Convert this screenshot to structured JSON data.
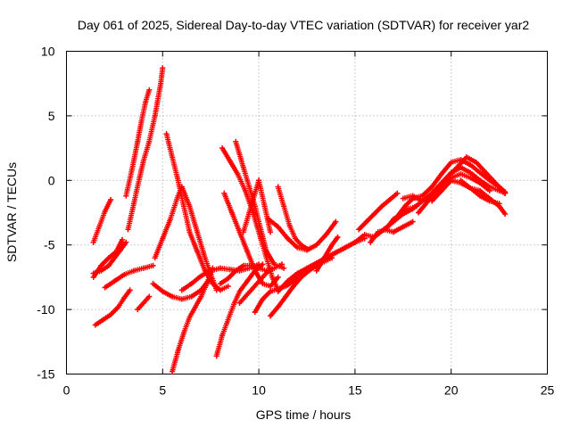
{
  "chart_data": {
    "type": "scatter",
    "title": "Day 061 of 2025, Sidereal Day-to-day VTEC variation (SDTVAR) for receiver yar2",
    "xlabel": "GPS time / hours",
    "ylabel": "SDTVAR / TECUs",
    "xlim": [
      0,
      25
    ],
    "ylim": [
      -15,
      10
    ],
    "xticks": [
      "0",
      "5",
      "10",
      "15",
      "20",
      "25"
    ],
    "yticks": [
      "-15",
      "-10",
      "-5",
      "0",
      "5",
      "10"
    ],
    "grid": true,
    "marker": "+",
    "color": "#ff0000",
    "series": [
      {
        "name": "trace-1",
        "x": [
          1.4,
          1.7,
          2.0,
          2.3
        ],
        "y": [
          -4.8,
          -3.6,
          -2.4,
          -1.5
        ]
      },
      {
        "name": "trace-2",
        "x": [
          1.4,
          1.8,
          2.2,
          2.6,
          2.9
        ],
        "y": [
          -7.5,
          -6.6,
          -6.0,
          -5.5,
          -4.6
        ]
      },
      {
        "name": "trace-3",
        "x": [
          1.4,
          1.8,
          2.2,
          2.5,
          2.8,
          3.1
        ],
        "y": [
          -7.2,
          -7.0,
          -6.6,
          -6.0,
          -5.4,
          -4.8
        ]
      },
      {
        "name": "trace-4",
        "x": [
          1.5,
          1.9,
          2.3,
          2.7,
          3.0,
          3.3
        ],
        "y": [
          -11.2,
          -10.8,
          -10.4,
          -9.8,
          -9.1,
          -8.5
        ]
      },
      {
        "name": "trace-5",
        "x": [
          2.0,
          2.5,
          3.0,
          3.5,
          4.0,
          4.5
        ],
        "y": [
          -8.3,
          -7.8,
          -7.3,
          -7.0,
          -6.8,
          -6.6
        ]
      },
      {
        "name": "trace-6",
        "x": [
          3.1,
          3.4,
          3.7,
          3.9,
          4.1,
          4.3
        ],
        "y": [
          -1.2,
          0.8,
          3.0,
          4.6,
          6.0,
          7.0
        ]
      },
      {
        "name": "trace-7",
        "x": [
          3.2,
          3.5,
          3.8,
          4.0,
          4.3,
          4.6,
          4.9,
          5.0
        ],
        "y": [
          -3.8,
          -1.8,
          0.2,
          1.5,
          3.0,
          5.0,
          7.5,
          8.7
        ]
      },
      {
        "name": "trace-8",
        "x": [
          3.7,
          4.0,
          4.3
        ],
        "y": [
          -10.0,
          -9.5,
          -9.0
        ]
      },
      {
        "name": "trace-9",
        "x": [
          4.5,
          5.0,
          5.5,
          6.0,
          6.5,
          7.0,
          7.5
        ],
        "y": [
          -8.0,
          -8.6,
          -9.0,
          -9.2,
          -9.0,
          -8.5,
          -7.5
        ]
      },
      {
        "name": "trace-10",
        "x": [
          4.6,
          5.0,
          5.4,
          5.8,
          6.0,
          6.4,
          6.8,
          7.2,
          7.8
        ],
        "y": [
          -6.0,
          -4.5,
          -3.0,
          -1.2,
          -0.5,
          -2.0,
          -4.0,
          -6.0,
          -8.5
        ]
      },
      {
        "name": "trace-11",
        "x": [
          5.2,
          5.5,
          5.8,
          6.1,
          6.4,
          6.8,
          7.2,
          7.6,
          8.0,
          8.4
        ],
        "y": [
          3.6,
          1.8,
          0.0,
          -2.0,
          -4.0,
          -5.5,
          -7.0,
          -8.0,
          -8.5,
          -8.2
        ]
      },
      {
        "name": "trace-12",
        "x": [
          5.5,
          5.8,
          6.1,
          6.4,
          6.7,
          7.0,
          7.3,
          7.6
        ],
        "y": [
          -14.8,
          -13.2,
          -11.8,
          -10.6,
          -9.8,
          -9.0,
          -8.0,
          -6.8
        ]
      },
      {
        "name": "trace-13",
        "x": [
          6.0,
          6.5,
          7.0,
          7.5,
          8.0,
          8.5,
          9.0,
          9.5,
          10.0
        ],
        "y": [
          -8.5,
          -8.0,
          -7.4,
          -7.0,
          -6.8,
          -6.9,
          -7.0,
          -6.8,
          -6.5
        ]
      },
      {
        "name": "trace-14",
        "x": [
          7.8,
          8.1,
          8.4,
          8.7,
          9.0,
          9.4,
          9.8,
          10.2
        ],
        "y": [
          -13.6,
          -12.0,
          -10.8,
          -9.6,
          -8.6,
          -7.8,
          -7.0,
          -6.5
        ]
      },
      {
        "name": "trace-15",
        "x": [
          8.0,
          8.4,
          8.8,
          9.2,
          9.6,
          10.0,
          10.4,
          10.8,
          11.2
        ],
        "y": [
          -8.0,
          -7.6,
          -7.0,
          -6.6,
          -6.6,
          -6.8,
          -7.0,
          -6.8,
          -6.5
        ]
      },
      {
        "name": "trace-16",
        "x": [
          8.2,
          8.6,
          9.0,
          9.4,
          9.8,
          10.2,
          10.6,
          11.0
        ],
        "y": [
          -1.0,
          -2.5,
          -4.0,
          -5.5,
          -7.0,
          -8.0,
          -8.2,
          -7.5
        ]
      },
      {
        "name": "trace-17",
        "x": [
          8.1,
          8.5,
          8.9,
          9.3,
          9.7,
          10.1,
          10.4,
          10.7,
          11.0
        ],
        "y": [
          2.5,
          1.5,
          0.5,
          -0.8,
          -2.5,
          -4.5,
          -6.0,
          -7.5,
          -8.5
        ]
      },
      {
        "name": "trace-18",
        "x": [
          8.8,
          9.0,
          9.2,
          9.5,
          9.8,
          10.1,
          10.4,
          10.8,
          11.3
        ],
        "y": [
          3.0,
          2.0,
          1.0,
          -0.5,
          -2.0,
          -3.8,
          -5.5,
          -6.5,
          -6.8
        ]
      },
      {
        "name": "trace-19",
        "x": [
          9.2,
          9.5,
          9.8,
          10.0,
          10.3,
          10.6
        ],
        "y": [
          -4.0,
          -2.5,
          -1.0,
          0.0,
          -2.0,
          -4.0
        ]
      },
      {
        "name": "trace-20",
        "x": [
          9.0,
          9.3,
          9.6,
          9.9,
          10.2,
          10.5,
          10.8
        ],
        "y": [
          -9.5,
          -9.0,
          -8.5,
          -8.0,
          -7.5,
          -7.0,
          -6.8
        ]
      },
      {
        "name": "trace-21",
        "x": [
          9.8,
          10.2,
          10.6,
          11.0,
          11.4,
          11.8,
          12.2
        ],
        "y": [
          -10.2,
          -9.2,
          -8.6,
          -8.4,
          -8.2,
          -7.8,
          -7.4
        ]
      },
      {
        "name": "trace-22",
        "x": [
          10.5,
          11.0,
          11.5,
          12.0,
          12.5,
          13.0,
          13.5,
          14.0
        ],
        "y": [
          -3.0,
          -3.6,
          -4.5,
          -5.2,
          -5.4,
          -5.0,
          -4.2,
          -3.2
        ]
      },
      {
        "name": "trace-23",
        "x": [
          11.0,
          11.3,
          11.6,
          11.9,
          12.2,
          12.5
        ],
        "y": [
          -0.5,
          -2.0,
          -3.5,
          -4.5,
          -5.0,
          -5.3
        ]
      },
      {
        "name": "trace-24",
        "x": [
          10.6,
          11.0,
          11.4,
          11.8,
          12.2,
          12.6,
          13.0,
          13.4,
          13.8
        ],
        "y": [
          -10.5,
          -9.8,
          -9.0,
          -8.2,
          -7.5,
          -7.0,
          -6.6,
          -6.3,
          -6.0
        ]
      },
      {
        "name": "trace-25",
        "x": [
          11.0,
          11.5,
          12.0,
          12.5,
          13.0,
          13.5,
          14.0,
          14.5,
          15.0
        ],
        "y": [
          -8.6,
          -7.8,
          -7.2,
          -6.8,
          -6.4,
          -6.0,
          -5.6,
          -5.2,
          -4.8
        ]
      },
      {
        "name": "trace-26",
        "x": [
          12.0,
          12.5,
          13.0,
          13.5,
          14.0,
          14.5,
          15.0,
          15.5
        ],
        "y": [
          -7.6,
          -6.9,
          -6.4,
          -6.0,
          -5.6,
          -5.2,
          -4.8,
          -4.5
        ]
      },
      {
        "name": "trace-27",
        "x": [
          13.0,
          13.4,
          13.8,
          14.1
        ],
        "y": [
          -7.0,
          -6.0,
          -5.0,
          -4.4
        ]
      },
      {
        "name": "trace-28",
        "x": [
          15.0,
          15.5,
          16.0,
          16.5,
          17.0,
          17.5,
          18.0
        ],
        "y": [
          -4.8,
          -4.2,
          -4.4,
          -3.8,
          -4.0,
          -3.6,
          -3.2
        ]
      },
      {
        "name": "trace-29",
        "x": [
          15.2,
          15.6,
          16.0,
          16.4,
          16.8,
          17.2
        ],
        "y": [
          -3.8,
          -3.2,
          -2.6,
          -2.0,
          -1.5,
          -1.0
        ]
      },
      {
        "name": "trace-30",
        "x": [
          15.8,
          16.2,
          16.6,
          17.0,
          17.4,
          17.8,
          18.2
        ],
        "y": [
          -4.8,
          -4.0,
          -3.8,
          -3.0,
          -2.6,
          -2.2,
          -2.0
        ]
      },
      {
        "name": "trace-31",
        "x": [
          16.5,
          17.0,
          17.5,
          18.0,
          18.5,
          19.0,
          19.5,
          20.0,
          20.5,
          21.0,
          21.5,
          22.0,
          22.5,
          22.8
        ],
        "y": [
          -3.8,
          -3.2,
          -2.6,
          -2.2,
          -1.6,
          -1.0,
          -0.2,
          0.6,
          1.0,
          0.6,
          0.0,
          -0.5,
          -0.8,
          -1.0
        ]
      },
      {
        "name": "trace-32",
        "x": [
          17.2,
          17.6,
          18.0,
          18.5,
          19.0,
          19.5,
          20.0,
          20.5,
          21.0,
          21.5,
          22.0,
          22.5,
          22.8
        ],
        "y": [
          -2.8,
          -2.0,
          -1.4,
          -1.2,
          -0.5,
          0.5,
          1.4,
          1.6,
          1.2,
          0.6,
          0.0,
          -0.5,
          -0.9
        ]
      },
      {
        "name": "trace-33",
        "x": [
          17.5,
          18.0,
          18.5,
          19.0,
          19.5,
          20.0,
          20.5,
          21.0,
          21.5,
          22.0
        ],
        "y": [
          -1.4,
          -1.2,
          -1.6,
          -1.0,
          -0.2,
          0.2,
          0.5,
          0.2,
          -0.2,
          -0.8
        ]
      },
      {
        "name": "trace-34",
        "x": [
          18.3,
          18.8,
          19.3,
          19.8,
          20.3,
          20.8,
          21.3,
          21.8,
          22.3,
          22.8
        ],
        "y": [
          -2.5,
          -1.6,
          -0.8,
          0.2,
          1.0,
          1.8,
          1.4,
          0.6,
          -0.2,
          -1.0
        ]
      },
      {
        "name": "trace-35",
        "x": [
          19.0,
          19.5,
          20.0,
          20.5,
          21.0,
          21.5,
          22.0,
          22.5
        ],
        "y": [
          -1.6,
          -0.8,
          0.0,
          -0.2,
          -0.6,
          -1.2,
          -1.6,
          -1.8
        ]
      },
      {
        "name": "trace-36",
        "x": [
          20.5,
          21.0,
          21.5,
          22.0,
          22.5,
          22.8
        ],
        "y": [
          0.0,
          -0.6,
          -0.8,
          -1.4,
          -2.0,
          -2.6
        ]
      }
    ]
  }
}
